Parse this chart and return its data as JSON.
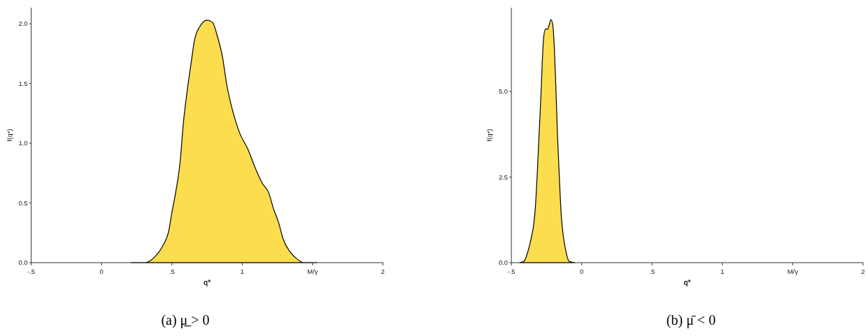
{
  "chart_data": [
    {
      "type": "area",
      "xlabel": "q*",
      "ylabel": "f(q*)",
      "annotations": [
        "(a) μ̲ > 0"
      ],
      "color": "#fbdd4e",
      "x": [
        0.21,
        0.31,
        0.38,
        0.43,
        0.48,
        0.5,
        0.53,
        0.56,
        0.58,
        0.61,
        0.64,
        0.66,
        0.7,
        0.75,
        0.79,
        0.82,
        0.86,
        0.89,
        0.93,
        0.98,
        1.04,
        1.09,
        1.14,
        1.19,
        1.22,
        1.26,
        1.29,
        1.34,
        1.39,
        1.44,
        1.53
      ],
      "values": [
        0,
        0,
        0.05,
        0.13,
        0.28,
        0.42,
        0.61,
        0.86,
        1.15,
        1.45,
        1.7,
        1.86,
        1.98,
        2.03,
        2.01,
        1.91,
        1.72,
        1.49,
        1.28,
        1.09,
        0.95,
        0.8,
        0.67,
        0.58,
        0.46,
        0.33,
        0.2,
        0.09,
        0.03,
        0,
        0
      ],
      "xlim": [
        -0.5,
        2
      ],
      "ylim": [
        0,
        2.135
      ],
      "xticks": [
        {
          "value": -0.5,
          "label": "-.5"
        },
        0,
        {
          "value": 0.5,
          "label": ".5"
        },
        1,
        {
          "value": 1.5,
          "label": "M/γ"
        },
        2
      ],
      "yticks": [
        {
          "value": 0,
          "label": "0.0"
        },
        {
          "value": 0.5,
          "label": "0.5"
        },
        {
          "value": 1,
          "label": "1.0"
        },
        {
          "value": 1.5,
          "label": "1.5"
        },
        {
          "value": 2,
          "label": "2.0"
        }
      ]
    },
    {
      "type": "area",
      "xlabel": "q*",
      "ylabel": "f(q*)",
      "annotations": [
        "(b) μ̄ < 0"
      ],
      "color": "#fbdd4e",
      "x": [
        -0.44,
        -0.41,
        -0.38,
        -0.355,
        -0.34,
        -0.33,
        -0.317,
        -0.303,
        -0.289,
        -0.28,
        -0.271,
        -0.257,
        -0.243,
        -0.233,
        -0.219,
        -0.206,
        -0.194,
        -0.184,
        -0.172,
        -0.159,
        -0.145,
        -0.131,
        -0.11,
        -0.09,
        -0.05
      ],
      "values": [
        0,
        0.04,
        0.36,
        0.79,
        1.15,
        1.58,
        2.51,
        3.73,
        4.95,
        5.88,
        6.56,
        6.83,
        6.82,
        6.92,
        7.1,
        6.96,
        6.24,
        5.16,
        3.73,
        2.51,
        1.36,
        0.79,
        0.29,
        0.04,
        0
      ],
      "xlim": [
        -0.5,
        2
      ],
      "ylim": [
        0,
        7.45
      ],
      "xticks": [
        {
          "value": -0.5,
          "label": "-.5"
        },
        0,
        {
          "value": 0.5,
          "label": ".5"
        },
        1,
        {
          "value": 1.5,
          "label": "M/γ"
        },
        2
      ],
      "yticks": [
        {
          "value": 0,
          "label": "0.0"
        },
        2.5,
        {
          "value": 5,
          "label": "5.0"
        }
      ]
    }
  ]
}
